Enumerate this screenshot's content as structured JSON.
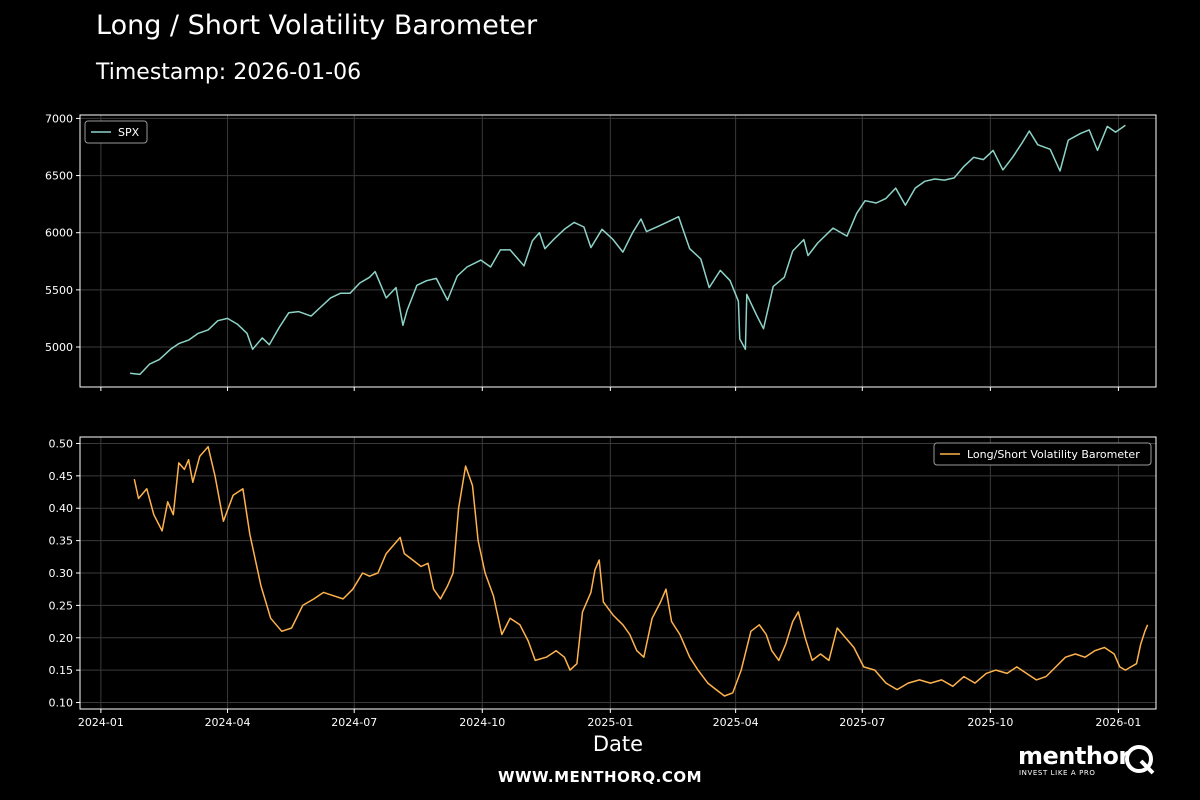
{
  "title": "Long / Short Volatility Barometer",
  "subtitle": "Timestamp: 2026-01-06",
  "footer": "WWW.MENTHORQ.COM",
  "brand": {
    "name": "menthor",
    "tagline": "INVEST LIKE A PRO"
  },
  "colors": {
    "spx": "#8dd3c7",
    "barometer": "#feb24c",
    "grid": "#3a3a3a",
    "axes": "#ffffff",
    "background": "#000000"
  },
  "chart_data": [
    {
      "type": "line",
      "series_name": "SPX",
      "legend": "SPX",
      "legend_position": "upper-left",
      "ylim": [
        4650,
        7030
      ],
      "yticks": [
        5000,
        5500,
        6000,
        6500,
        7000
      ],
      "x_range": [
        "2023-12-17",
        "2026-01-28"
      ],
      "grid": true,
      "points": [
        [
          "2024-01-22",
          4770
        ],
        [
          "2024-01-29",
          4760
        ],
        [
          "2024-02-05",
          4850
        ],
        [
          "2024-02-12",
          4890
        ],
        [
          "2024-02-20",
          4980
        ],
        [
          "2024-02-26",
          5030
        ],
        [
          "2024-03-04",
          5060
        ],
        [
          "2024-03-11",
          5120
        ],
        [
          "2024-03-18",
          5150
        ],
        [
          "2024-03-25",
          5230
        ],
        [
          "2024-04-01",
          5250
        ],
        [
          "2024-04-08",
          5200
        ],
        [
          "2024-04-15",
          5120
        ],
        [
          "2024-04-19",
          4980
        ],
        [
          "2024-04-26",
          5080
        ],
        [
          "2024-05-01",
          5020
        ],
        [
          "2024-05-08",
          5170
        ],
        [
          "2024-05-15",
          5300
        ],
        [
          "2024-05-22",
          5310
        ],
        [
          "2024-05-31",
          5270
        ],
        [
          "2024-06-07",
          5350
        ],
        [
          "2024-06-14",
          5430
        ],
        [
          "2024-06-21",
          5470
        ],
        [
          "2024-06-28",
          5470
        ],
        [
          "2024-07-05",
          5560
        ],
        [
          "2024-07-12",
          5610
        ],
        [
          "2024-07-16",
          5660
        ],
        [
          "2024-07-24",
          5430
        ],
        [
          "2024-07-31",
          5520
        ],
        [
          "2024-08-05",
          5190
        ],
        [
          "2024-08-08",
          5320
        ],
        [
          "2024-08-15",
          5540
        ],
        [
          "2024-08-22",
          5580
        ],
        [
          "2024-08-29",
          5600
        ],
        [
          "2024-09-06",
          5410
        ],
        [
          "2024-09-13",
          5620
        ],
        [
          "2024-09-20",
          5700
        ],
        [
          "2024-09-30",
          5760
        ],
        [
          "2024-10-07",
          5700
        ],
        [
          "2024-10-14",
          5850
        ],
        [
          "2024-10-21",
          5850
        ],
        [
          "2024-10-31",
          5710
        ],
        [
          "2024-11-06",
          5930
        ],
        [
          "2024-11-11",
          6000
        ],
        [
          "2024-11-15",
          5860
        ],
        [
          "2024-11-22",
          5950
        ],
        [
          "2024-11-29",
          6030
        ],
        [
          "2024-12-06",
          6090
        ],
        [
          "2024-12-13",
          6050
        ],
        [
          "2024-12-18",
          5870
        ],
        [
          "2024-12-26",
          6030
        ],
        [
          "2025-01-03",
          5940
        ],
        [
          "2025-01-10",
          5830
        ],
        [
          "2025-01-17",
          6000
        ],
        [
          "2025-01-23",
          6120
        ],
        [
          "2025-01-27",
          6010
        ],
        [
          "2025-02-05",
          6060
        ],
        [
          "2025-02-14",
          6110
        ],
        [
          "2025-02-19",
          6140
        ],
        [
          "2025-02-27",
          5860
        ],
        [
          "2025-03-07",
          5770
        ],
        [
          "2025-03-13",
          5520
        ],
        [
          "2025-03-21",
          5670
        ],
        [
          "2025-03-28",
          5580
        ],
        [
          "2025-04-03",
          5400
        ],
        [
          "2025-04-04",
          5070
        ],
        [
          "2025-04-08",
          4980
        ],
        [
          "2025-04-09",
          5460
        ],
        [
          "2025-04-16",
          5280
        ],
        [
          "2025-04-21",
          5160
        ],
        [
          "2025-04-28",
          5530
        ],
        [
          "2025-05-06",
          5610
        ],
        [
          "2025-05-12",
          5840
        ],
        [
          "2025-05-20",
          5940
        ],
        [
          "2025-05-23",
          5800
        ],
        [
          "2025-05-30",
          5910
        ],
        [
          "2025-06-10",
          6040
        ],
        [
          "2025-06-20",
          5970
        ],
        [
          "2025-06-27",
          6170
        ],
        [
          "2025-07-03",
          6280
        ],
        [
          "2025-07-11",
          6260
        ],
        [
          "2025-07-18",
          6300
        ],
        [
          "2025-07-25",
          6390
        ],
        [
          "2025-08-01",
          6240
        ],
        [
          "2025-08-08",
          6390
        ],
        [
          "2025-08-15",
          6450
        ],
        [
          "2025-08-22",
          6470
        ],
        [
          "2025-08-29",
          6460
        ],
        [
          "2025-09-05",
          6480
        ],
        [
          "2025-09-12",
          6580
        ],
        [
          "2025-09-19",
          6660
        ],
        [
          "2025-09-26",
          6640
        ],
        [
          "2025-10-03",
          6720
        ],
        [
          "2025-10-10",
          6550
        ],
        [
          "2025-10-17",
          6660
        ],
        [
          "2025-10-24",
          6790
        ],
        [
          "2025-10-29",
          6890
        ],
        [
          "2025-11-04",
          6770
        ],
        [
          "2025-11-13",
          6730
        ],
        [
          "2025-11-20",
          6540
        ],
        [
          "2025-11-26",
          6810
        ],
        [
          "2025-12-05",
          6870
        ],
        [
          "2025-12-11",
          6900
        ],
        [
          "2025-12-17",
          6720
        ],
        [
          "2025-12-24",
          6930
        ],
        [
          "2025-12-30",
          6880
        ],
        [
          "2026-01-06",
          6940
        ]
      ]
    },
    {
      "type": "line",
      "series_name": "Long/Short Volatility Barometer",
      "legend": "Long/Short Volatility Barometer",
      "legend_position": "upper-right",
      "xlabel": "Date",
      "ylim": [
        0.09,
        0.51
      ],
      "yticks": [
        "0.10",
        "0.15",
        "0.20",
        "0.25",
        "0.30",
        "0.35",
        "0.40",
        "0.45",
        "0.50"
      ],
      "x_range": [
        "2023-12-17",
        "2026-01-28"
      ],
      "xticks": [
        "2024-01",
        "2024-04",
        "2024-07",
        "2024-10",
        "2025-01",
        "2025-04",
        "2025-07",
        "2025-10",
        "2026-01"
      ],
      "grid": true,
      "points": [
        [
          "2024-01-25",
          0.445
        ],
        [
          "2024-01-28",
          0.415
        ],
        [
          "2024-02-03",
          0.43
        ],
        [
          "2024-02-08",
          0.39
        ],
        [
          "2024-02-14",
          0.365
        ],
        [
          "2024-02-18",
          0.41
        ],
        [
          "2024-02-22",
          0.39
        ],
        [
          "2024-02-26",
          0.47
        ],
        [
          "2024-03-01",
          0.46
        ],
        [
          "2024-03-04",
          0.475
        ],
        [
          "2024-03-07",
          0.44
        ],
        [
          "2024-03-12",
          0.48
        ],
        [
          "2024-03-18",
          0.495
        ],
        [
          "2024-03-23",
          0.45
        ],
        [
          "2024-03-29",
          0.38
        ],
        [
          "2024-04-05",
          0.42
        ],
        [
          "2024-04-12",
          0.43
        ],
        [
          "2024-04-17",
          0.36
        ],
        [
          "2024-04-25",
          0.28
        ],
        [
          "2024-05-02",
          0.23
        ],
        [
          "2024-05-10",
          0.21
        ],
        [
          "2024-05-17",
          0.215
        ],
        [
          "2024-05-25",
          0.25
        ],
        [
          "2024-06-02",
          0.26
        ],
        [
          "2024-06-09",
          0.27
        ],
        [
          "2024-06-16",
          0.265
        ],
        [
          "2024-06-23",
          0.26
        ],
        [
          "2024-06-30",
          0.275
        ],
        [
          "2024-07-07",
          0.3
        ],
        [
          "2024-07-12",
          0.295
        ],
        [
          "2024-07-18",
          0.3
        ],
        [
          "2024-07-24",
          0.33
        ],
        [
          "2024-07-30",
          0.345
        ],
        [
          "2024-08-03",
          0.355
        ],
        [
          "2024-08-06",
          0.33
        ],
        [
          "2024-08-12",
          0.32
        ],
        [
          "2024-08-18",
          0.31
        ],
        [
          "2024-08-23",
          0.315
        ],
        [
          "2024-08-27",
          0.275
        ],
        [
          "2024-09-01",
          0.26
        ],
        [
          "2024-09-06",
          0.28
        ],
        [
          "2024-09-10",
          0.3
        ],
        [
          "2024-09-14",
          0.4
        ],
        [
          "2024-09-19",
          0.465
        ],
        [
          "2024-09-24",
          0.435
        ],
        [
          "2024-09-28",
          0.35
        ],
        [
          "2024-10-03",
          0.3
        ],
        [
          "2024-10-09",
          0.265
        ],
        [
          "2024-10-15",
          0.205
        ],
        [
          "2024-10-21",
          0.23
        ],
        [
          "2024-10-28",
          0.22
        ],
        [
          "2024-11-03",
          0.195
        ],
        [
          "2024-11-08",
          0.165
        ],
        [
          "2024-11-16",
          0.17
        ],
        [
          "2024-11-23",
          0.18
        ],
        [
          "2024-11-29",
          0.17
        ],
        [
          "2024-12-03",
          0.15
        ],
        [
          "2024-12-08",
          0.16
        ],
        [
          "2024-12-12",
          0.24
        ],
        [
          "2024-12-18",
          0.27
        ],
        [
          "2024-12-21",
          0.305
        ],
        [
          "2024-12-24",
          0.32
        ],
        [
          "2024-12-27",
          0.255
        ],
        [
          "2025-01-03",
          0.235
        ],
        [
          "2025-01-10",
          0.22
        ],
        [
          "2025-01-15",
          0.205
        ],
        [
          "2025-01-20",
          0.18
        ],
        [
          "2025-01-25",
          0.17
        ],
        [
          "2025-01-31",
          0.23
        ],
        [
          "2025-02-06",
          0.255
        ],
        [
          "2025-02-10",
          0.275
        ],
        [
          "2025-02-14",
          0.225
        ],
        [
          "2025-02-20",
          0.205
        ],
        [
          "2025-02-27",
          0.17
        ],
        [
          "2025-03-05",
          0.15
        ],
        [
          "2025-03-12",
          0.13
        ],
        [
          "2025-03-18",
          0.12
        ],
        [
          "2025-03-24",
          0.11
        ],
        [
          "2025-03-30",
          0.115
        ],
        [
          "2025-04-05",
          0.15
        ],
        [
          "2025-04-12",
          0.21
        ],
        [
          "2025-04-18",
          0.22
        ],
        [
          "2025-04-23",
          0.205
        ],
        [
          "2025-04-27",
          0.18
        ],
        [
          "2025-05-02",
          0.165
        ],
        [
          "2025-05-07",
          0.19
        ],
        [
          "2025-05-12",
          0.225
        ],
        [
          "2025-05-16",
          0.24
        ],
        [
          "2025-05-21",
          0.2
        ],
        [
          "2025-05-26",
          0.165
        ],
        [
          "2025-06-01",
          0.175
        ],
        [
          "2025-06-07",
          0.165
        ],
        [
          "2025-06-13",
          0.215
        ],
        [
          "2025-06-19",
          0.2
        ],
        [
          "2025-06-25",
          0.185
        ],
        [
          "2025-07-02",
          0.155
        ],
        [
          "2025-07-10",
          0.15
        ],
        [
          "2025-07-18",
          0.13
        ],
        [
          "2025-07-26",
          0.12
        ],
        [
          "2025-08-03",
          0.13
        ],
        [
          "2025-08-11",
          0.135
        ],
        [
          "2025-08-19",
          0.13
        ],
        [
          "2025-08-27",
          0.135
        ],
        [
          "2025-09-04",
          0.125
        ],
        [
          "2025-09-12",
          0.14
        ],
        [
          "2025-09-20",
          0.13
        ],
        [
          "2025-09-28",
          0.145
        ],
        [
          "2025-10-05",
          0.15
        ],
        [
          "2025-10-13",
          0.145
        ],
        [
          "2025-10-20",
          0.155
        ],
        [
          "2025-10-27",
          0.145
        ],
        [
          "2025-11-03",
          0.135
        ],
        [
          "2025-11-10",
          0.14
        ],
        [
          "2025-11-17",
          0.155
        ],
        [
          "2025-11-24",
          0.17
        ],
        [
          "2025-12-01",
          0.175
        ],
        [
          "2025-12-08",
          0.17
        ],
        [
          "2025-12-15",
          0.18
        ],
        [
          "2025-12-22",
          0.185
        ],
        [
          "2025-12-29",
          0.175
        ],
        [
          "2026-01-02",
          0.155
        ],
        [
          "2026-01-06",
          0.15
        ],
        [
          "2026-01-10",
          0.155
        ],
        [
          "2026-01-14",
          0.16
        ],
        [
          "2026-01-17",
          0.19
        ],
        [
          "2026-01-20",
          0.21
        ],
        [
          "2026-01-22",
          0.22
        ]
      ]
    }
  ]
}
